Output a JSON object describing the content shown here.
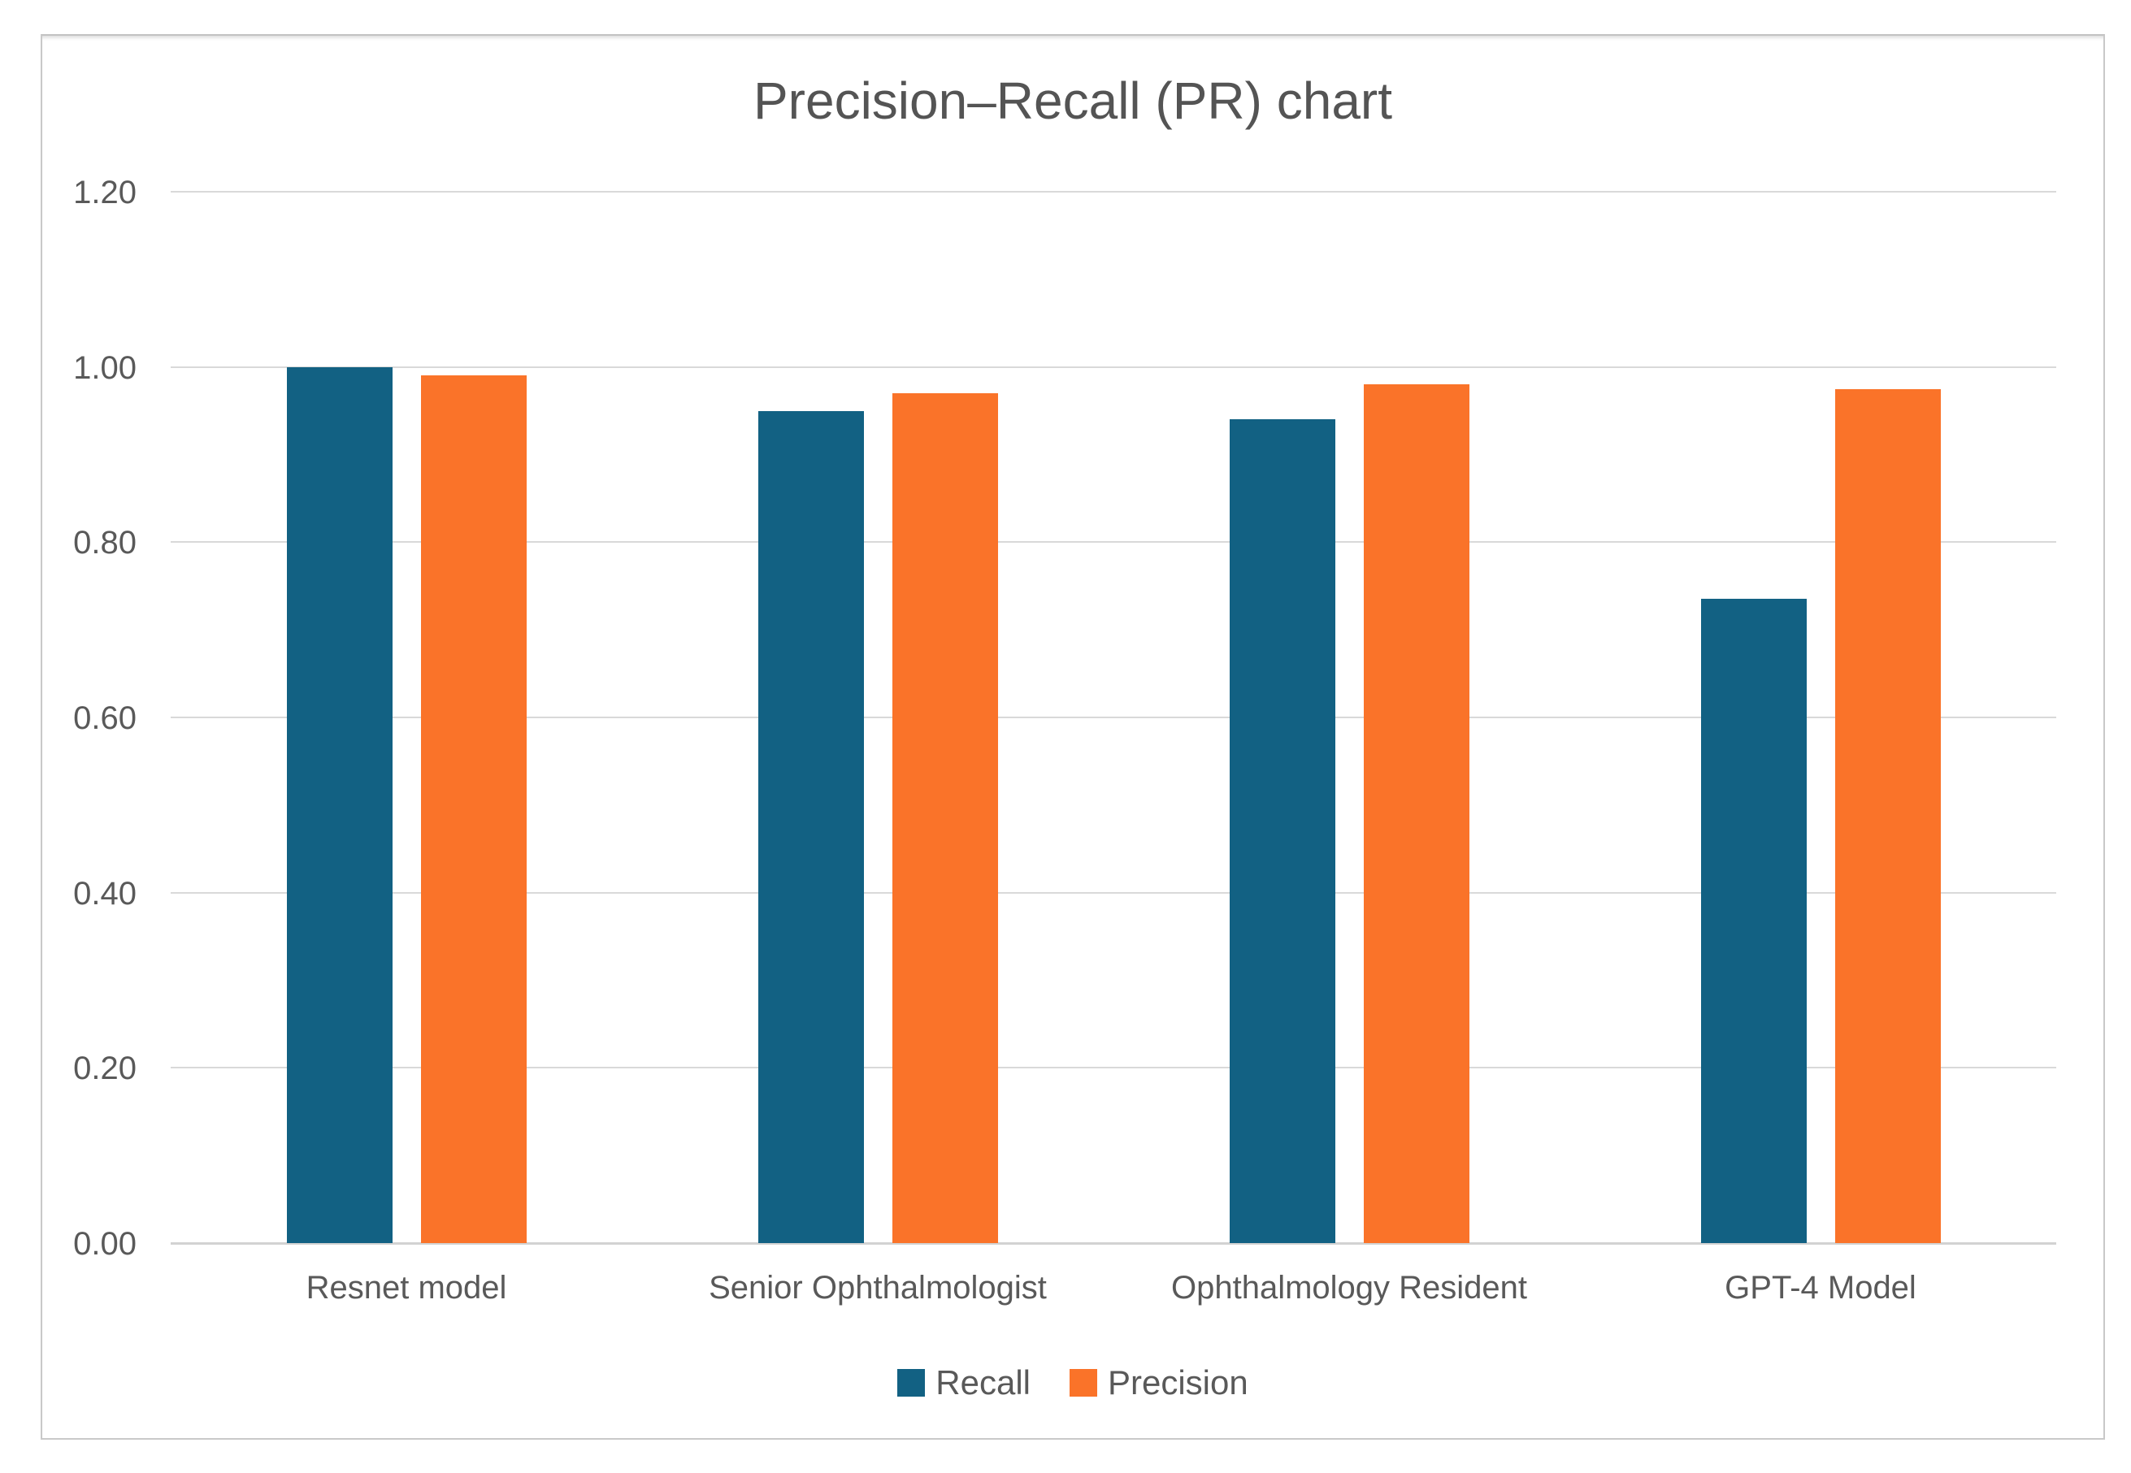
{
  "chart_data": {
    "type": "bar",
    "title": "Precision–Recall (PR) chart",
    "categories": [
      "Resnet model",
      "Senior Ophthalmologist",
      "Ophthalmology Resident",
      "GPT-4 Model"
    ],
    "series": [
      {
        "name": "Recall",
        "color": "#126183",
        "values": [
          1.0,
          0.95,
          0.94,
          0.735
        ]
      },
      {
        "name": "Precision",
        "color": "#FA7329",
        "values": [
          0.99,
          0.97,
          0.98,
          0.975
        ]
      }
    ],
    "xlabel": "",
    "ylabel": "",
    "ylim": [
      0,
      1.2
    ],
    "y_ticks": [
      {
        "value": 0.0,
        "label": "0.00"
      },
      {
        "value": 0.2,
        "label": "0.20"
      },
      {
        "value": 0.4,
        "label": "0.40"
      },
      {
        "value": 0.6,
        "label": "0.60"
      },
      {
        "value": 0.8,
        "label": "0.80"
      },
      {
        "value": 1.0,
        "label": "1.00"
      },
      {
        "value": 1.2,
        "label": "1.20"
      }
    ],
    "grid": true,
    "legend_position": "bottom",
    "colors": {
      "gridline": "#d9d9d9",
      "baseline": "#d2d2d2",
      "text": "#595959",
      "title_text": "#545454",
      "container_border": "#c9c9c9",
      "background": "#ffffff"
    }
  }
}
